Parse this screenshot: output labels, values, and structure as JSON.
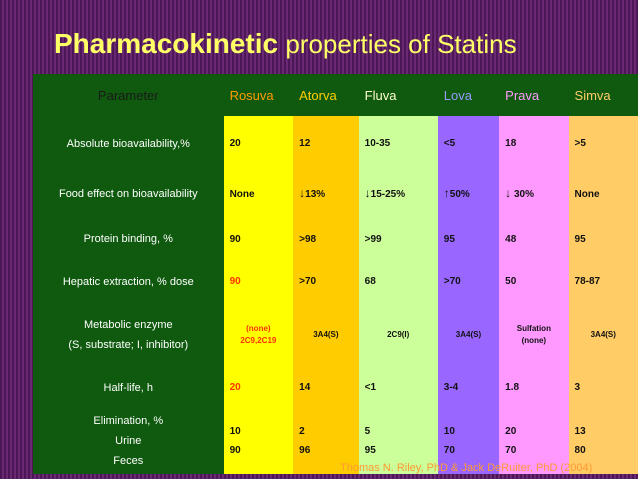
{
  "title": {
    "bold": "Pharmacokinetic",
    "rest": " properties of Statins"
  },
  "headers": {
    "parameter": "Parameter",
    "drugs": [
      "Rosuva",
      "Atorva",
      "Fluva",
      "Lova",
      "Prava",
      "Simva"
    ]
  },
  "rows": [
    {
      "param_lines": [
        "Absolute bioavailability,%"
      ],
      "values": [
        "20",
        "12",
        "10-35",
        "<5",
        "18",
        ">5"
      ]
    },
    {
      "param_lines": [
        "Food effect on bioavailability"
      ],
      "values": [
        "None",
        "13%",
        "15-25%",
        "50%",
        " 30%",
        "None"
      ]
    },
    {
      "param_lines": [
        "Protein binding, %"
      ],
      "values": [
        "90",
        ">98",
        ">99",
        "95",
        "48",
        "95"
      ]
    },
    {
      "param_lines": [
        "Hepatic extraction, % dose"
      ],
      "values": [
        "90",
        ">70",
        "68",
        ">70",
        "50",
        "78-87"
      ]
    },
    {
      "param_lines": [
        "Metabolic enzyme",
        "(S, substrate; I, inhibitor)"
      ],
      "values": [
        "(none)",
        "3A4(S)",
        "2C9(I)",
        "3A4(S)",
        "Sulfation",
        "3A4(S)"
      ],
      "values_line2": [
        "2C9,2C19",
        "",
        "",
        "",
        "(none)",
        ""
      ]
    },
    {
      "param_lines": [
        "Half-life, h"
      ],
      "values": [
        "20",
        "14",
        "<1",
        "3-4",
        "1.8",
        "3"
      ]
    },
    {
      "param_lines": [
        "Elimination, %",
        "Urine",
        "Feces"
      ],
      "values": [
        "10",
        "2",
        "5",
        "10",
        "20",
        "13"
      ],
      "values_line2": [
        "90",
        "96",
        "95",
        "70",
        "70",
        "80"
      ]
    }
  ],
  "arrows": {
    "down": "↓",
    "up": "↑"
  },
  "citation": "Thomas N. Riley, PhD & Jack DeRuiter, PhD (2004)",
  "colors": {
    "background": "#5a1f63",
    "title": "#ffff66",
    "param_column": "#0f5a0f",
    "rosuva": "#ffff00",
    "atorva": "#ffcc00",
    "fluva": "#ccff99",
    "lova": "#9966ff",
    "prava": "#ff99ff",
    "simva": "#ffcc66",
    "highlight": "#ff3300",
    "citation": "#ff9933"
  }
}
